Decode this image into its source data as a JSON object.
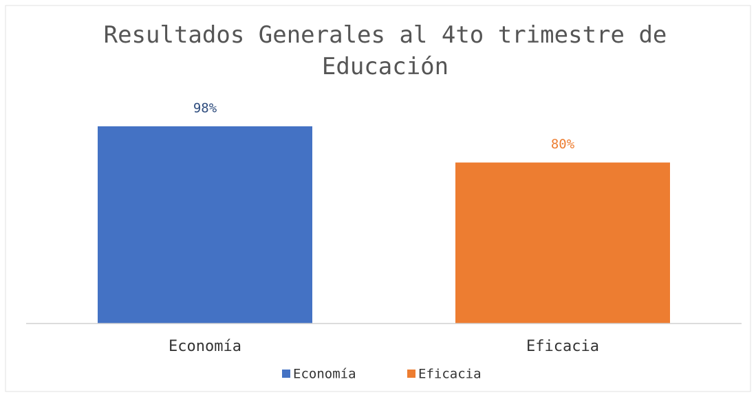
{
  "chart_data": {
    "type": "bar",
    "title": "Resultados Generales al 4to trimestre de Educación",
    "categories": [
      "Economía",
      "Eficacia"
    ],
    "values": [
      98,
      80
    ],
    "value_labels": [
      "98%",
      "80%"
    ],
    "colors": [
      "#4472c4",
      "#ed7d31"
    ],
    "ylim": [
      0,
      100
    ],
    "legend": true
  }
}
